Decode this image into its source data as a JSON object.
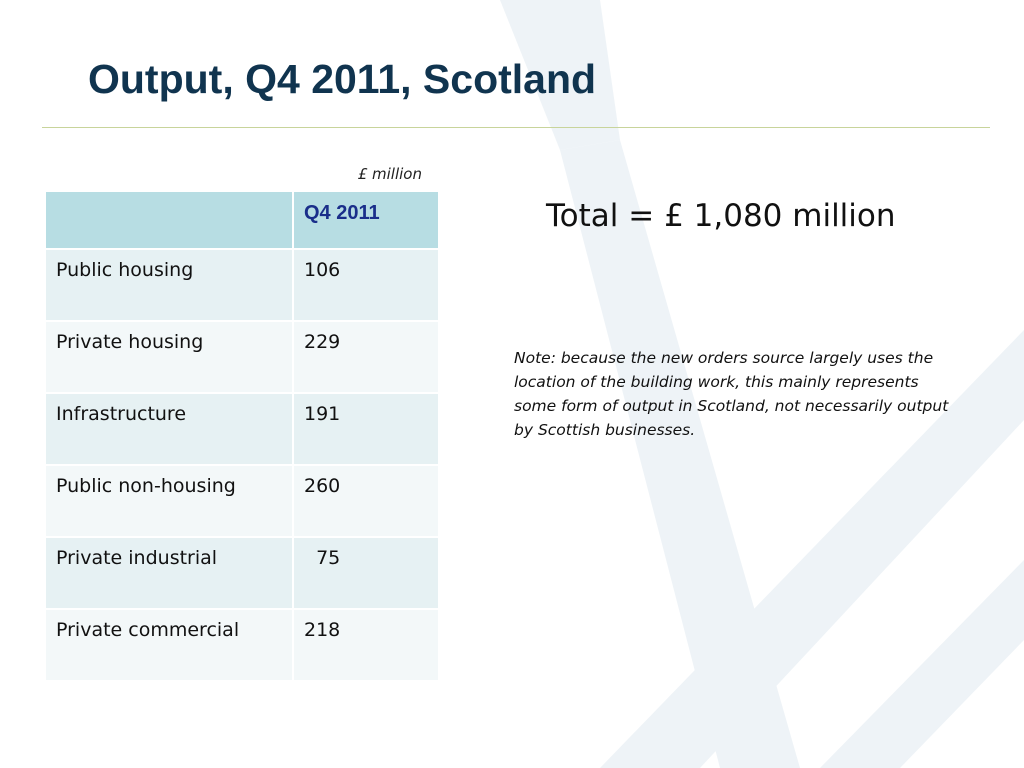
{
  "slide": {
    "title": "Output, Q4 2011, Scotland",
    "unit": "£ million",
    "total": "Total = £ 1,080 million",
    "note": "Note: because the new orders source largely uses the location of the building work, this mainly represents some form of output in Scotland, not necessarily output by Scottish businesses."
  },
  "table": {
    "header": [
      "",
      "Q4 2011"
    ],
    "rows": [
      {
        "label": "Public housing",
        "value": "106"
      },
      {
        "label": "Private housing",
        "value": "229"
      },
      {
        "label": "Infrastructure",
        "value": "191"
      },
      {
        "label": "Public non-housing",
        "value": "260"
      },
      {
        "label": "Private industrial",
        "value": "  75"
      },
      {
        "label": "Private commercial",
        "value": "218"
      }
    ]
  },
  "colors": {
    "title": "#10344f",
    "rule": "#c8d49b",
    "header_fill": "#b7dde3",
    "row_fill": "#e6f1f3",
    "row_fill_alt": "#f3f8f9",
    "header_text": "#1a2e8a",
    "watermark": "#eef3f7"
  }
}
